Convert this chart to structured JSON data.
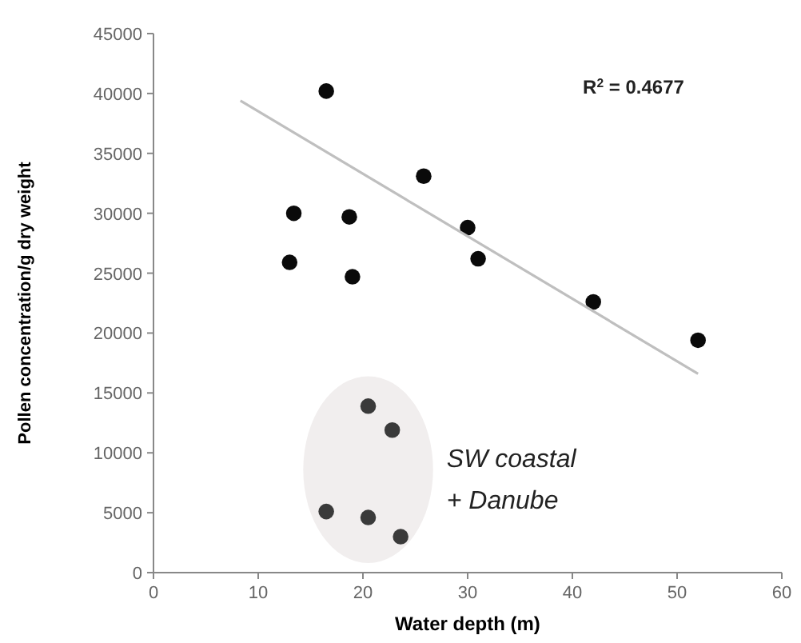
{
  "chart_data": {
    "type": "scatter",
    "xlabel": "Water depth (m)",
    "ylabel": "Pollen concentration/g dry weight",
    "xlim": [
      0,
      60
    ],
    "xticks": [
      0,
      10,
      20,
      30,
      40,
      50,
      60
    ],
    "ylim": [
      0,
      45000
    ],
    "yticks": [
      0,
      5000,
      10000,
      15000,
      20000,
      25000,
      30000,
      35000,
      40000,
      45000
    ],
    "grid": false,
    "series": [
      {
        "color": "#0a0a0a",
        "marker": "circle",
        "x": [
          16.5,
          13.4,
          13,
          18.7,
          19,
          25.8,
          30,
          31,
          42,
          52
        ],
        "values": [
          40200,
          30000,
          25900,
          29700,
          24700,
          33100,
          28800,
          26200,
          22600,
          19400
        ]
      },
      {
        "color": "#3a3a3a",
        "marker": "circle",
        "x": [
          20.5,
          22.8,
          16.5,
          20.5,
          23.6
        ],
        "values": [
          13900,
          11900,
          5100,
          4600,
          3000
        ]
      },
      {
        "type": "line",
        "color": "#bfbfbf",
        "x": [
          8.3,
          52
        ],
        "values": [
          39400,
          16600
        ]
      }
    ],
    "annotations": [
      "R$^{2}$ = 0.4677",
      "SW coastal",
      "+ Danube"
    ]
  }
}
